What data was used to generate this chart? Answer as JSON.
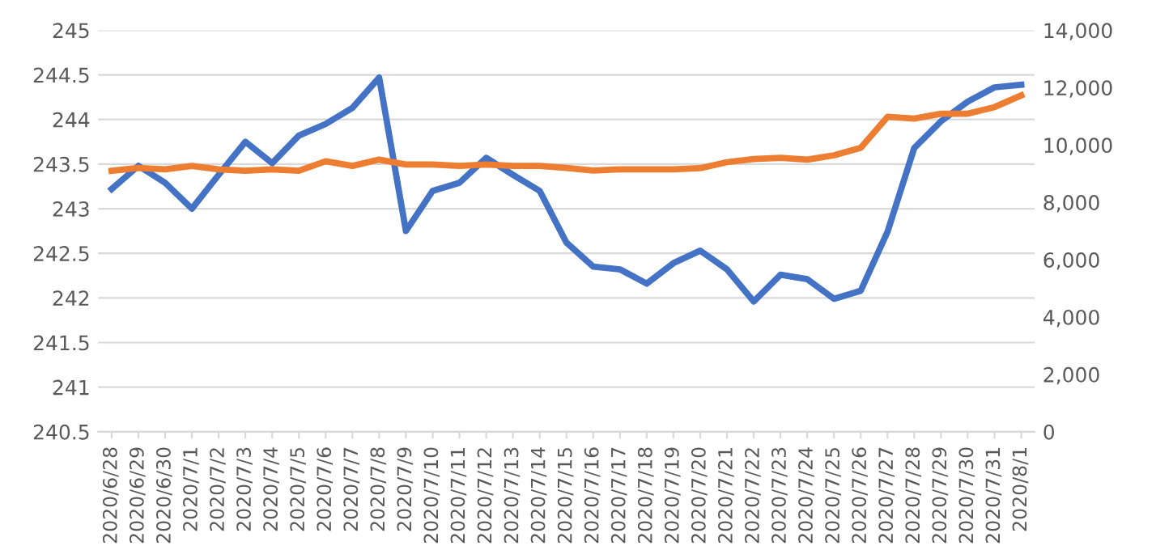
{
  "chart_data": {
    "type": "line",
    "categories": [
      "2020/6/28",
      "2020/6/29",
      "2020/6/30",
      "2020/7/1",
      "2020/7/2",
      "2020/7/3",
      "2020/7/4",
      "2020/7/5",
      "2020/7/6",
      "2020/7/7",
      "2020/7/8",
      "2020/7/9",
      "2020/7/10",
      "2020/7/11",
      "2020/7/12",
      "2020/7/13",
      "2020/7/14",
      "2020/7/15",
      "2020/7/16",
      "2020/7/17",
      "2020/7/18",
      "2020/7/19",
      "2020/7/20",
      "2020/7/21",
      "2020/7/22",
      "2020/7/23",
      "2020/7/24",
      "2020/7/25",
      "2020/7/26",
      "2020/7/27",
      "2020/7/28",
      "2020/7/29",
      "2020/7/30",
      "2020/7/31",
      "2020/8/1"
    ],
    "series": [
      {
        "color": "#4472c4",
        "values": [
          243.22,
          243.48,
          243.29,
          243.0,
          243.38,
          243.75,
          243.51,
          243.82,
          243.95,
          244.13,
          244.47,
          242.75,
          243.2,
          243.29,
          243.57,
          243.38,
          243.2,
          242.62,
          242.35,
          242.32,
          242.16,
          242.39,
          242.53,
          242.32,
          241.96,
          242.26,
          242.21,
          241.99,
          242.08,
          242.74,
          243.68,
          243.98,
          244.2,
          244.36,
          244.39
        ]
      },
      {
        "color": "#ed7d31",
        "axis": "y2",
        "values": [
          9100,
          9200,
          9150,
          9270,
          9150,
          9100,
          9150,
          9100,
          9430,
          9270,
          9490,
          9320,
          9320,
          9270,
          9320,
          9270,
          9270,
          9200,
          9110,
          9150,
          9150,
          9150,
          9190,
          9400,
          9510,
          9550,
          9490,
          9640,
          9900,
          10980,
          10920,
          11090,
          11090,
          11320,
          11730
        ]
      }
    ],
    "ylim": [
      240.5,
      245
    ],
    "yticks": [
      240.5,
      241,
      241.5,
      242,
      242.5,
      243,
      243.5,
      244,
      244.5,
      245
    ],
    "y2lim": [
      0,
      14000
    ],
    "y2ticks": [
      {
        "value": 0,
        "label": "0"
      },
      {
        "value": 2000,
        "label": "2,000"
      },
      {
        "value": 4000,
        "label": "4,000"
      },
      {
        "value": 6000,
        "label": "6,000"
      },
      {
        "value": 8000,
        "label": "8,000"
      },
      {
        "value": 10000,
        "label": "10,000"
      },
      {
        "value": 12000,
        "label": "12,000"
      },
      {
        "value": 14000,
        "label": "14,000"
      }
    ],
    "grid": "y",
    "legend": false,
    "marker": "none",
    "line_style": "solid"
  }
}
